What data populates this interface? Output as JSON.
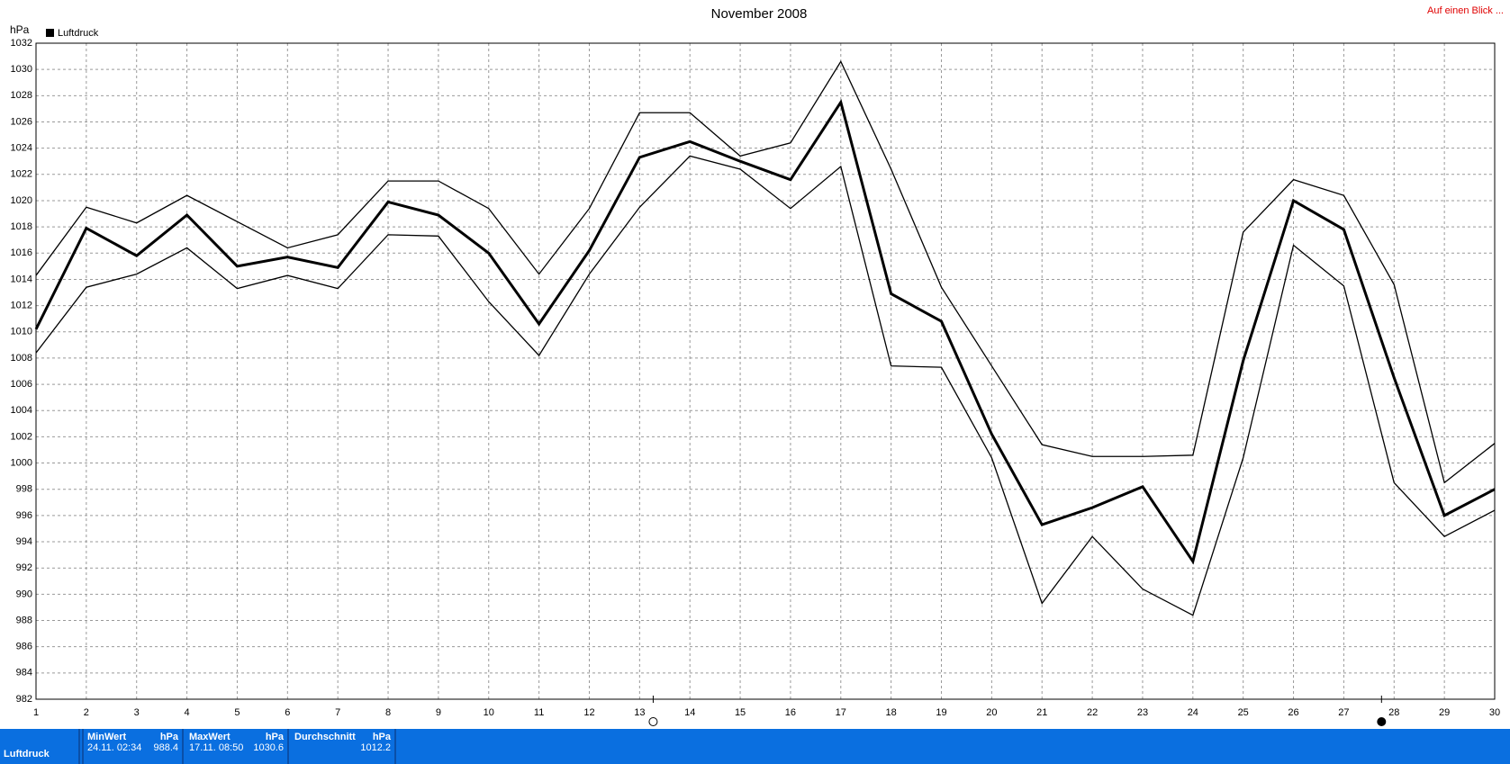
{
  "chart_data": {
    "type": "line",
    "title": "November 2008",
    "y_unit": "hPa",
    "link": "Auf einen Blick ...",
    "x": [
      1,
      2,
      3,
      4,
      5,
      6,
      7,
      8,
      9,
      10,
      11,
      12,
      13,
      14,
      15,
      16,
      17,
      18,
      19,
      20,
      21,
      22,
      23,
      24,
      25,
      26,
      27,
      28,
      29,
      30
    ],
    "xlim": [
      1,
      30
    ],
    "xticks": [
      1,
      2,
      3,
      4,
      5,
      6,
      7,
      8,
      9,
      10,
      11,
      12,
      13,
      14,
      15,
      16,
      17,
      18,
      19,
      20,
      21,
      22,
      23,
      24,
      25,
      26,
      27,
      28,
      29,
      30
    ],
    "ylim": [
      982,
      1032
    ],
    "yticks": [
      982,
      984,
      986,
      988,
      990,
      992,
      994,
      996,
      998,
      1000,
      1002,
      1004,
      1006,
      1008,
      1010,
      1012,
      1014,
      1016,
      1018,
      1020,
      1022,
      1024,
      1026,
      1028,
      1030,
      1032
    ],
    "grid": true,
    "legend": "top-left",
    "series": [
      {
        "name": "Luftdruck",
        "color": "#000000",
        "width": 3,
        "values": [
          1010.2,
          1017.9,
          1015.8,
          1018.9,
          1015.0,
          1015.7,
          1014.9,
          1019.9,
          1018.9,
          1016.0,
          1010.6,
          1016.2,
          1023.3,
          1024.5,
          1023.0,
          1021.6,
          1027.5,
          1012.9,
          1010.8,
          1002.2,
          995.3,
          996.6,
          998.2,
          992.5,
          1007.8,
          1020.0,
          1017.8,
          1006.5,
          996.0,
          998.0
        ]
      },
      {
        "color": "#000000",
        "width": 1.3,
        "values": [
          1014.3,
          1019.5,
          1018.3,
          1020.4,
          1018.4,
          1016.4,
          1017.4,
          1021.5,
          1021.5,
          1019.4,
          1014.4,
          1019.4,
          1026.7,
          1026.7,
          1023.4,
          1024.4,
          1030.6,
          1022.4,
          1013.4,
          1007.4,
          1001.4,
          1000.5,
          1000.5,
          1000.6,
          1017.6,
          1021.6,
          1020.4,
          1013.6,
          998.5,
          1001.5
        ]
      },
      {
        "color": "#000000",
        "width": 1.3,
        "values": [
          1008.4,
          1013.4,
          1014.4,
          1016.4,
          1013.3,
          1014.3,
          1013.3,
          1017.4,
          1017.3,
          1012.3,
          1008.2,
          1014.4,
          1019.5,
          1023.4,
          1022.4,
          1019.4,
          1022.6,
          1007.4,
          1007.3,
          1000.4,
          989.3,
          994.4,
          990.4,
          988.4,
          1000.4,
          1016.6,
          1013.5,
          998.5,
          994.4,
          996.4
        ]
      }
    ],
    "moon_markers": [
      {
        "x": 13.27,
        "filled": false
      },
      {
        "x": 27.75,
        "filled": true
      }
    ]
  },
  "stats": {
    "label": "Luftdruck",
    "min": {
      "title": "MinWert",
      "unit": "hPa",
      "time": "24.11.  02:34",
      "value": "988.4"
    },
    "max": {
      "title": "MaxWert",
      "unit": "hPa",
      "time": "17.11.  08:50",
      "value": "1030.6"
    },
    "avg": {
      "title": "Durchschnitt",
      "unit": "hPa",
      "value": "1012.2"
    }
  }
}
